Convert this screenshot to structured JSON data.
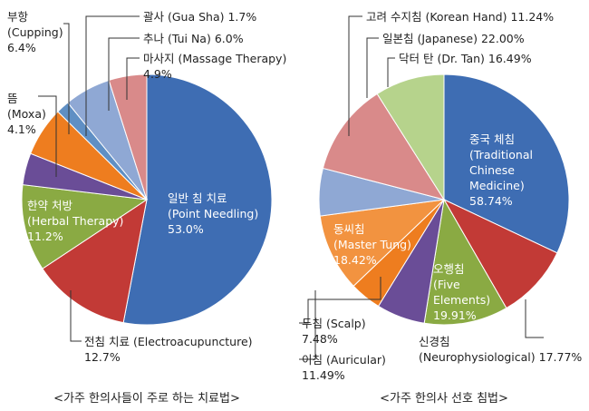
{
  "chart_data": [
    {
      "type": "pie",
      "title": "<가주 한의사들이 주로 하는 치료법>",
      "categories": [
        "일반 침 치료\n(Point Needling)",
        "전침 치료 (Electroacupuncture)",
        "한약 처방\n(Herbal Therapy)",
        "뜸\n(Moxa)",
        "부항\n(Cupping)",
        "괄사 (Gua Sha)",
        "추나 (Tui Na)",
        "마사지 (Massage Therapy)"
      ],
      "values": [
        53.0,
        12.7,
        11.2,
        4.1,
        6.4,
        1.7,
        6.0,
        4.9
      ],
      "value_labels": [
        "53.0%",
        "12.7%",
        "11.2%",
        "4.1%",
        "6.4%",
        "1.7%",
        "6.0%",
        "4.9%"
      ],
      "colors": [
        "#3e6db3",
        "#c23a36",
        "#8aaa43",
        "#6a4d97",
        "#ee7d1f",
        "#5f8fc4",
        "#8fa8d4",
        "#d98a8a"
      ]
    },
    {
      "type": "pie",
      "title": "<가주 한의사 선호 침법>",
      "categories": [
        "중국 체침\n(Traditional\nChinese\nMedicine)",
        "신경침\n(Neurophysiological)",
        "오행침\n(Five\nElements)",
        "이침 (Auricular)",
        "두침 (Scalp)",
        "동씨침\n(Master Tung)",
        "고려 수지침 (Korean Hand)",
        "일본침 (Japanese)",
        "닥터 탄 (Dr. Tan)"
      ],
      "values": [
        58.74,
        17.77,
        19.91,
        11.49,
        7.48,
        18.42,
        11.24,
        22.0,
        16.49
      ],
      "value_labels": [
        "58.74%",
        "17.77%",
        "19.91%",
        "11.49%",
        "7.48%",
        "18.42%",
        "11.24%",
        "22.00%",
        "16.49%"
      ],
      "colors": [
        "#3e6db3",
        "#c23a36",
        "#8aaa43",
        "#6a4d97",
        "#ee7d1f",
        "#f29340",
        "#8fa8d4",
        "#d98a8a",
        "#b6d38c"
      ]
    }
  ]
}
